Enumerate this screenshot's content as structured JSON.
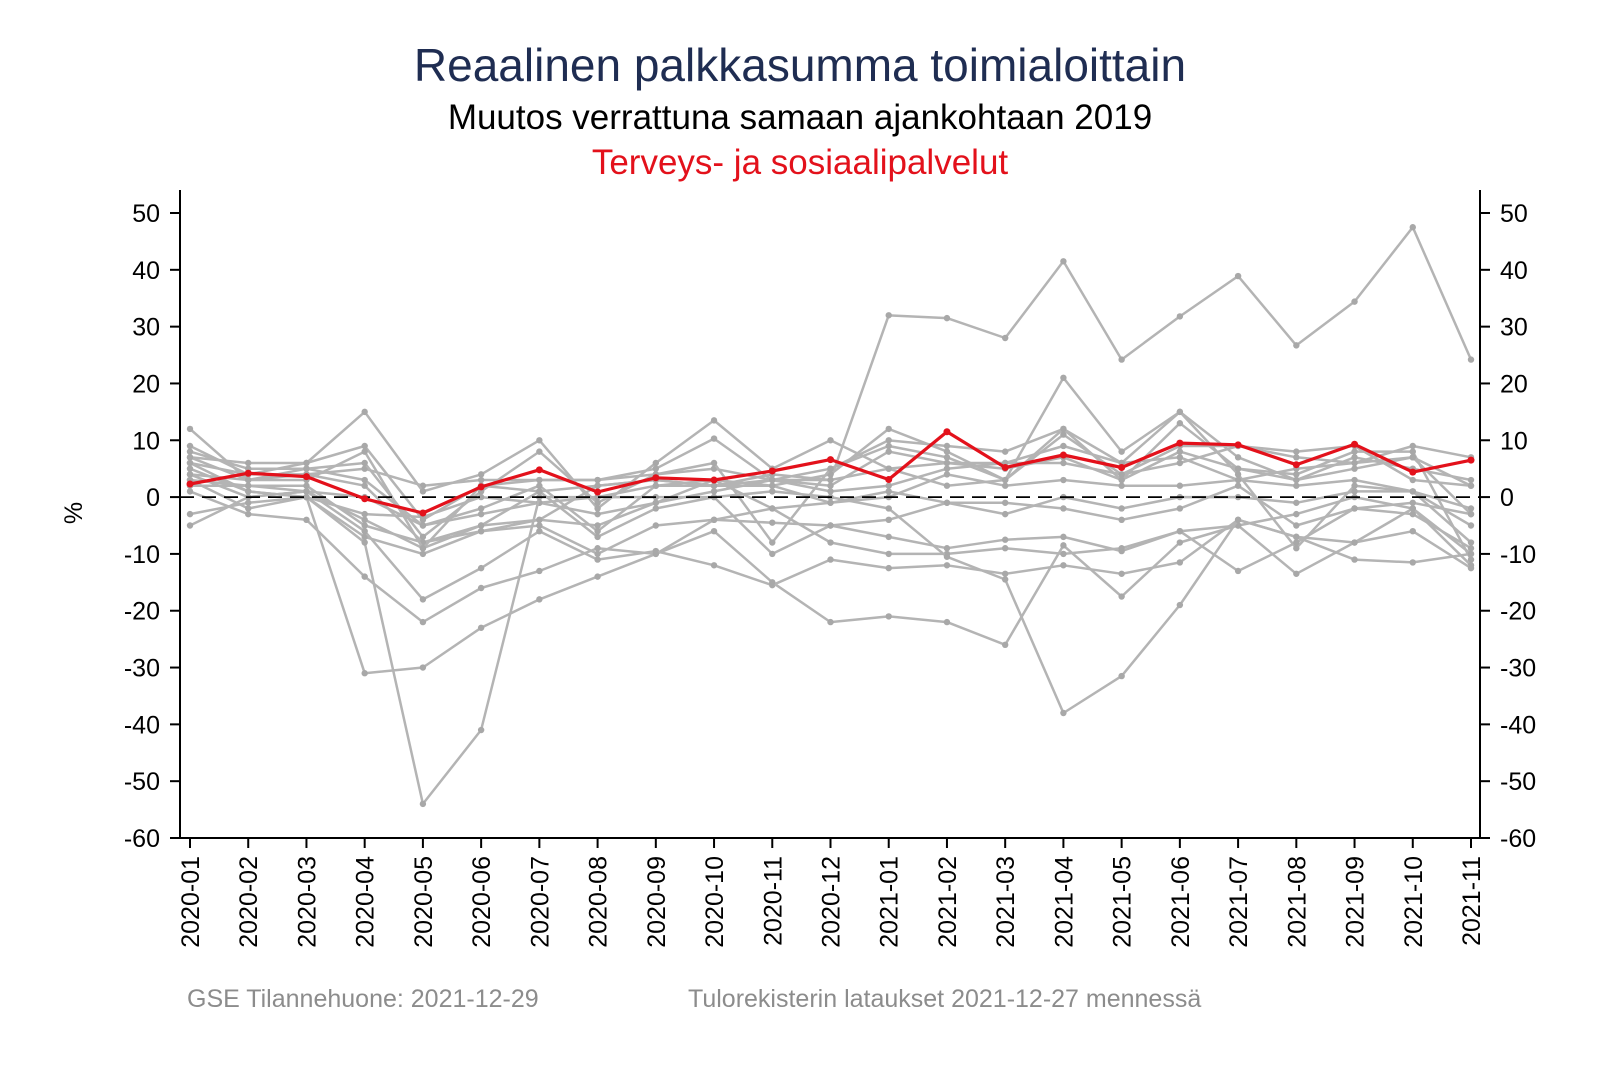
{
  "header": {
    "title": "Reaalinen palkkasumma toimialoittain",
    "subtitle": "Muutos verrattuna samaan ajankohtaan 2019",
    "highlight_label": "Terveys- ja sosiaalipalvelut"
  },
  "footer": {
    "left": "GSE Tilannehuone: 2021-12-29",
    "right": "Tulorekisterin lataukset 2021-12-27 mennessä"
  },
  "colors": {
    "title": "#1f2d52",
    "highlight": "#e3111b",
    "background_series": "#b4b4b4",
    "axis": "#000000"
  },
  "chart_data": {
    "type": "line",
    "ylabel": "%",
    "xlabel": "",
    "ylim": [
      -60,
      50
    ],
    "yticks": [
      50,
      40,
      30,
      20,
      10,
      0,
      -10,
      -20,
      -30,
      -40,
      -50,
      -60
    ],
    "ytick_labels": [
      "50",
      "40",
      "30",
      "20",
      "10",
      "0",
      "-10",
      "-20",
      "-30",
      "-40",
      "-50",
      "-60"
    ],
    "reference_line": 0,
    "grid": false,
    "right_axis_mirrored": true,
    "categories": [
      "2020-01",
      "2020-02",
      "2020-03",
      "2020-04",
      "2020-05",
      "2020-06",
      "2020-07",
      "2020-08",
      "2020-09",
      "2020-10",
      "2020-11",
      "2020-12",
      "2021-01",
      "2021-02",
      "2021-03",
      "2021-04",
      "2021-05",
      "2021-06",
      "2021-07",
      "2021-08",
      "2021-09",
      "2021-10",
      "2021-11"
    ],
    "highlight_series": {
      "name": "Terveys- ja sosiaalipalvelut",
      "values": [
        2.3,
        4.2,
        3.6,
        -0.3,
        -2.8,
        1.8,
        4.8,
        0.9,
        3.4,
        3.0,
        4.6,
        6.6,
        3.1,
        11.5,
        5.2,
        7.4,
        5.2,
        9.5,
        9.2,
        5.7,
        9.3,
        4.4,
        6.5
      ]
    },
    "background_series": [
      {
        "values": [
          4,
          3,
          4,
          5,
          2,
          3,
          3,
          3,
          4,
          5,
          3,
          3,
          32,
          31.5,
          28,
          41.5,
          24.2,
          31.8,
          38.9,
          26.7,
          34.4,
          47.5,
          24.2
        ]
      },
      {
        "values": [
          12,
          3,
          5,
          3,
          -5,
          -2,
          2,
          -6,
          2,
          3,
          2,
          4,
          12,
          8,
          3,
          21,
          8,
          15,
          4,
          -9,
          2,
          1,
          -8
        ]
      },
      {
        "values": [
          9,
          4,
          6,
          15,
          1,
          4,
          10,
          -2,
          6,
          13.5,
          5,
          10,
          5,
          2,
          3,
          12,
          3,
          13,
          5,
          4,
          8,
          8,
          -11
        ]
      },
      {
        "values": [
          7,
          6,
          6,
          9,
          -4,
          2,
          3,
          3,
          5,
          10.3,
          3,
          5,
          10,
          9,
          8,
          12,
          6,
          15,
          7,
          3,
          7,
          5,
          3
        ]
      },
      {
        "values": [
          8,
          5,
          5,
          6,
          -7,
          1,
          8,
          -1,
          4,
          6,
          -8,
          5,
          9,
          7,
          3,
          11,
          4,
          9,
          9,
          8,
          9,
          3,
          2
        ]
      },
      {
        "values": [
          6,
          4,
          4,
          2,
          -8,
          -6,
          -4,
          2,
          3,
          2,
          4,
          3,
          5,
          6,
          5,
          7,
          3,
          8,
          5,
          3,
          5,
          7,
          2
        ]
      },
      {
        "values": [
          5,
          1,
          0,
          -3,
          -3.5,
          0,
          -1,
          -3,
          -1,
          1,
          3,
          1,
          2,
          5,
          6,
          9,
          6,
          7,
          3,
          2,
          3,
          1,
          -2
        ]
      },
      {
        "values": [
          3,
          2,
          2,
          -5,
          -8,
          -5,
          -4,
          -5,
          -1,
          3,
          -2,
          -1,
          0,
          4,
          2,
          3,
          2,
          2,
          3,
          5,
          6,
          7,
          -3
        ]
      },
      {
        "values": [
          2,
          2,
          1,
          0,
          -5,
          -3,
          -1,
          0,
          2,
          2,
          2,
          -1,
          1,
          -1,
          -3,
          0,
          -2,
          0,
          0,
          -1,
          1,
          1,
          -5
        ]
      },
      {
        "values": [
          4,
          0,
          1,
          -4,
          -9,
          -5,
          1,
          -7,
          -2,
          0,
          -10,
          -5,
          -4,
          -1,
          -1,
          -2,
          -4,
          -2,
          2,
          -5,
          -2,
          -1,
          -3
        ]
      },
      {
        "values": [
          -3,
          -1,
          0,
          -7,
          -10,
          -6,
          -5,
          -10,
          -5,
          -4,
          -2,
          -8,
          -10,
          -10,
          -9,
          -10,
          -9,
          -6,
          -5,
          -3,
          0,
          -2,
          -12
        ]
      },
      {
        "values": [
          -5,
          0,
          1,
          -6,
          -18,
          -12.5,
          -6,
          -11,
          -9.5,
          -12,
          -15.5,
          -11,
          -12.5,
          -12,
          -13.5,
          -12,
          -13.5,
          -11.5,
          -4,
          -7,
          -11,
          -11.5,
          -10
        ]
      },
      {
        "values": [
          1,
          -3,
          -4,
          -14,
          -22,
          -16,
          -13,
          -9,
          -10,
          -6,
          -15,
          -22,
          -21,
          -22,
          -26,
          -8.5,
          -17.5,
          -8,
          -5,
          -13.5,
          -8,
          -6,
          -12.5
        ]
      },
      {
        "values": [
          3,
          -2,
          0,
          -31,
          -30,
          -23,
          -18,
          -14,
          -10,
          -4,
          -4.5,
          -5,
          -7,
          -9,
          -7.5,
          -7,
          -9.5,
          -6,
          -13,
          -8,
          -2,
          -3,
          -9
        ]
      },
      {
        "values": [
          6,
          1,
          0,
          -8,
          -54,
          -41,
          0,
          0,
          0,
          0,
          1,
          0,
          -2,
          -10.5,
          -14.5,
          -38,
          -31.5,
          -19,
          -4,
          -7,
          -8,
          -2,
          -10
        ]
      },
      {
        "values": [
          7,
          3,
          3,
          8,
          -9,
          2,
          1,
          2,
          3,
          2,
          3,
          2,
          8,
          6,
          6,
          6,
          4,
          6,
          9,
          7,
          6,
          9,
          7
        ]
      }
    ]
  }
}
